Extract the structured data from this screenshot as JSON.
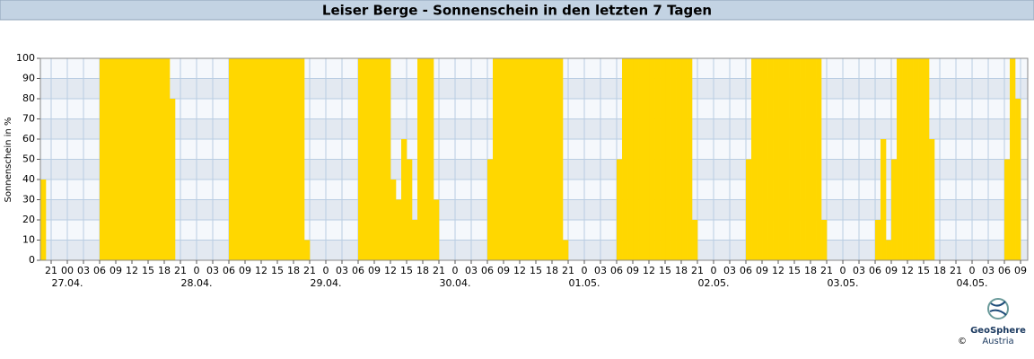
{
  "chart_data": {
    "type": "histogram",
    "title": "Leiser Berge - Sonnenschein in den letzten 7 Tagen",
    "y_label": "Sonnenschein in %",
    "color": "#ffd700",
    "grid": true,
    "bins": [
      -5,
      -4,
      -3,
      -2,
      -1,
      0,
      1,
      2,
      3,
      4,
      5,
      6,
      7,
      8,
      9,
      10,
      11,
      12,
      13,
      14,
      15,
      16,
      17,
      18,
      19,
      20,
      21,
      22,
      23,
      24,
      25,
      26,
      27,
      28,
      29,
      30,
      31,
      32,
      33,
      34,
      35,
      36,
      37,
      38,
      39,
      40,
      41,
      42,
      43,
      44,
      45,
      46,
      47,
      48,
      49,
      50,
      51,
      52,
      53,
      54,
      55,
      56,
      57,
      58,
      59,
      60,
      61,
      62,
      63,
      64,
      65,
      66,
      67,
      68,
      69,
      70,
      71,
      72,
      73,
      74,
      75,
      76,
      77,
      78,
      79,
      80,
      81,
      82,
      83,
      84,
      85,
      86,
      87,
      88,
      89,
      90,
      91,
      92,
      93,
      94,
      95,
      96,
      97,
      98,
      99,
      100,
      101,
      102,
      103,
      104,
      105,
      106,
      107,
      108,
      109,
      110,
      111,
      112,
      113,
      114,
      115,
      116,
      117,
      118,
      119,
      120,
      121,
      122,
      123,
      124,
      125,
      126,
      127,
      128,
      129,
      130,
      131,
      132,
      133,
      134,
      135,
      136,
      137,
      138,
      139,
      140,
      141,
      142,
      143,
      144,
      145,
      146,
      147,
      148,
      149,
      150,
      151,
      152,
      153,
      154,
      155,
      156,
      157,
      158,
      159,
      160,
      161,
      162,
      163,
      164,
      165,
      166,
      167,
      168,
      169,
      170,
      171,
      172,
      173,
      174,
      175,
      176,
      177,
      178
    ],
    "values": [
      40,
      0,
      0,
      0,
      0,
      0,
      0,
      0,
      0,
      0,
      0,
      100,
      100,
      100,
      100,
      100,
      100,
      100,
      100,
      100,
      100,
      100,
      100,
      100,
      80,
      0,
      0,
      0,
      0,
      0,
      0,
      0,
      0,
      0,
      0,
      100,
      100,
      100,
      100,
      100,
      100,
      100,
      100,
      100,
      100,
      100,
      100,
      100,
      100,
      10,
      0,
      0,
      0,
      0,
      0,
      0,
      0,
      0,
      0,
      100,
      100,
      100,
      100,
      100,
      100,
      40,
      30,
      60,
      50,
      20,
      100,
      100,
      100,
      30,
      0,
      0,
      0,
      0,
      0,
      0,
      0,
      0,
      0,
      50,
      100,
      100,
      100,
      100,
      100,
      100,
      100,
      100,
      100,
      100,
      100,
      100,
      100,
      10,
      0,
      0,
      0,
      0,
      0,
      0,
      0,
      0,
      0,
      50,
      100,
      100,
      100,
      100,
      100,
      100,
      100,
      100,
      100,
      100,
      100,
      100,
      100,
      20,
      0,
      0,
      0,
      0,
      0,
      0,
      0,
      0,
      0,
      50,
      100,
      100,
      100,
      100,
      100,
      100,
      100,
      100,
      100,
      100,
      100,
      100,
      100,
      20,
      0,
      0,
      0,
      0,
      0,
      0,
      0,
      0,
      0,
      20,
      60,
      10,
      50,
      100,
      100,
      100,
      100,
      100,
      100,
      60,
      0,
      0,
      0,
      0,
      0,
      0,
      0,
      0,
      0,
      0,
      0,
      0,
      0,
      50,
      100,
      80,
      0
    ],
    "xlim": [
      -5,
      178.33
    ],
    "ylim": [
      0,
      100
    ],
    "yticks": [
      0,
      10,
      20,
      30,
      40,
      50,
      60,
      70,
      80,
      90,
      100
    ],
    "xticks": [
      {
        "value": -3,
        "label": "21"
      },
      {
        "value": 0,
        "label": "00"
      },
      {
        "value": 3,
        "label": "03"
      },
      {
        "value": 6,
        "label": "06"
      },
      {
        "value": 9,
        "label": "09"
      },
      {
        "value": 12,
        "label": "12"
      },
      {
        "value": 15,
        "label": "15"
      },
      {
        "value": 18,
        "label": "18"
      },
      {
        "value": 21,
        "label": "21"
      },
      {
        "value": 24,
        "label": "0"
      },
      {
        "value": 27,
        "label": "03"
      },
      {
        "value": 30,
        "label": "06"
      },
      {
        "value": 33,
        "label": "09"
      },
      {
        "value": 36,
        "label": "12"
      },
      {
        "value": 39,
        "label": "15"
      },
      {
        "value": 42,
        "label": "18"
      },
      {
        "value": 45,
        "label": "21"
      },
      {
        "value": 48,
        "label": "0"
      },
      {
        "value": 51,
        "label": "03"
      },
      {
        "value": 54,
        "label": "06"
      },
      {
        "value": 57,
        "label": "09"
      },
      {
        "value": 60,
        "label": "12"
      },
      {
        "value": 63,
        "label": "15"
      },
      {
        "value": 66,
        "label": "18"
      },
      {
        "value": 69,
        "label": "21"
      },
      {
        "value": 72,
        "label": "0"
      },
      {
        "value": 75,
        "label": "03"
      },
      {
        "value": 78,
        "label": "06"
      },
      {
        "value": 81,
        "label": "09"
      },
      {
        "value": 84,
        "label": "12"
      },
      {
        "value": 87,
        "label": "15"
      },
      {
        "value": 90,
        "label": "18"
      },
      {
        "value": 93,
        "label": "21"
      },
      {
        "value": 96,
        "label": "0"
      },
      {
        "value": 99,
        "label": "03"
      },
      {
        "value": 102,
        "label": "06"
      },
      {
        "value": 105,
        "label": "09"
      },
      {
        "value": 108,
        "label": "12"
      },
      {
        "value": 111,
        "label": "15"
      },
      {
        "value": 114,
        "label": "18"
      },
      {
        "value": 117,
        "label": "21"
      },
      {
        "value": 120,
        "label": "0"
      },
      {
        "value": 123,
        "label": "03"
      },
      {
        "value": 126,
        "label": "06"
      },
      {
        "value": 129,
        "label": "09"
      },
      {
        "value": 132,
        "label": "12"
      },
      {
        "value": 135,
        "label": "15"
      },
      {
        "value": 138,
        "label": "18"
      },
      {
        "value": 141,
        "label": "21"
      },
      {
        "value": 144,
        "label": "0"
      },
      {
        "value": 147,
        "label": "03"
      },
      {
        "value": 150,
        "label": "06"
      },
      {
        "value": 153,
        "label": "09"
      },
      {
        "value": 156,
        "label": "12"
      },
      {
        "value": 159,
        "label": "15"
      },
      {
        "value": 162,
        "label": "18"
      },
      {
        "value": 165,
        "label": "21"
      },
      {
        "value": 168,
        "label": "0"
      },
      {
        "value": 171,
        "label": "03"
      },
      {
        "value": 174,
        "label": "06"
      },
      {
        "value": 177,
        "label": "09"
      }
    ],
    "date_ticks": [
      {
        "value": 0,
        "label": "27.04."
      },
      {
        "value": 24,
        "label": "28.04."
      },
      {
        "value": 48,
        "label": "29.04."
      },
      {
        "value": 72,
        "label": "30.04."
      },
      {
        "value": 96,
        "label": "01.05."
      },
      {
        "value": 120,
        "label": "02.05."
      },
      {
        "value": 144,
        "label": "03.05."
      },
      {
        "value": 168,
        "label": "04.05."
      }
    ]
  },
  "logo": {
    "name": "GeoSphere",
    "sub": "Austria",
    "copyright": "©"
  }
}
